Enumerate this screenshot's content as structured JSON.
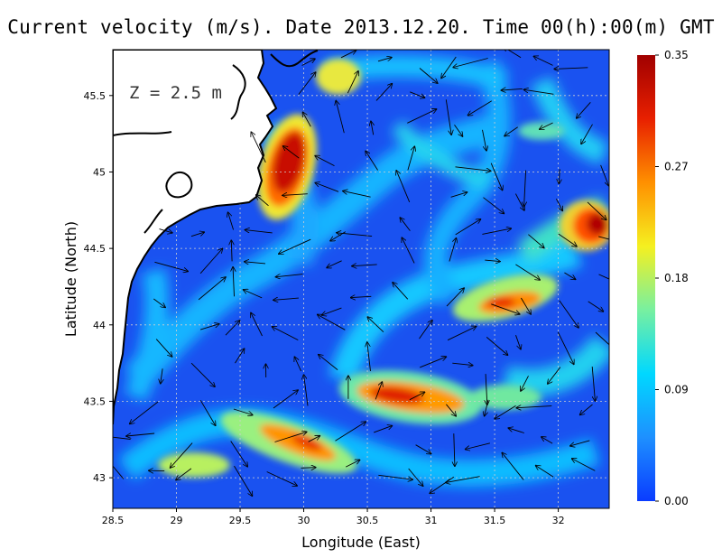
{
  "title": "Current velocity (m/s). Date 2013.12.20. Time 00(h):00(m) GMT",
  "depth_label": "Z = 2.5 m",
  "chart_data": {
    "type": "heatmap",
    "title": "Current velocity (m/s). Date 2013.12.20. Time 00(h):00(m) GMT",
    "xlabel": "Longitude (East)",
    "ylabel": "Latitude (North)",
    "xlim": [
      28.5,
      32.4
    ],
    "ylim": [
      42.8,
      45.8
    ],
    "x_ticks": [
      "28.5",
      "29",
      "29.5",
      "30",
      "30.5",
      "31",
      "31.5",
      "32"
    ],
    "y_ticks": [
      "43",
      "43.5",
      "44",
      "44.5",
      "45",
      "45.5"
    ],
    "colorbar": {
      "min": 0.0,
      "max": 0.35,
      "ticks": [
        "0.35",
        "0.27",
        "0.18",
        "0.09",
        "0.00"
      ],
      "colors": [
        "#0a3cff",
        "#1e90ff",
        "#00d8ff",
        "#78f0a0",
        "#f5f020",
        "#ff9000",
        "#e82000",
        "#a00000"
      ]
    },
    "grid": true,
    "hotspots": [
      {
        "lon": 29.87,
        "lat": 45.05,
        "value": 0.35
      },
      {
        "lon": 30.45,
        "lat": 45.55,
        "value": 0.24
      },
      {
        "lon": 30.8,
        "lat": 43.5,
        "value": 0.32
      },
      {
        "lon": 30.0,
        "lat": 43.25,
        "value": 0.3
      },
      {
        "lon": 29.6,
        "lat": 43.2,
        "value": 0.25
      },
      {
        "lon": 31.6,
        "lat": 44.15,
        "value": 0.3
      },
      {
        "lon": 32.3,
        "lat": 44.65,
        "value": 0.35
      },
      {
        "lon": 31.3,
        "lat": 43.35,
        "value": 0.2
      },
      {
        "lon": 29.0,
        "lat": 43.1,
        "value": 0.2
      },
      {
        "lon": 31.7,
        "lat": 44.4,
        "value": 0.22
      }
    ]
  }
}
